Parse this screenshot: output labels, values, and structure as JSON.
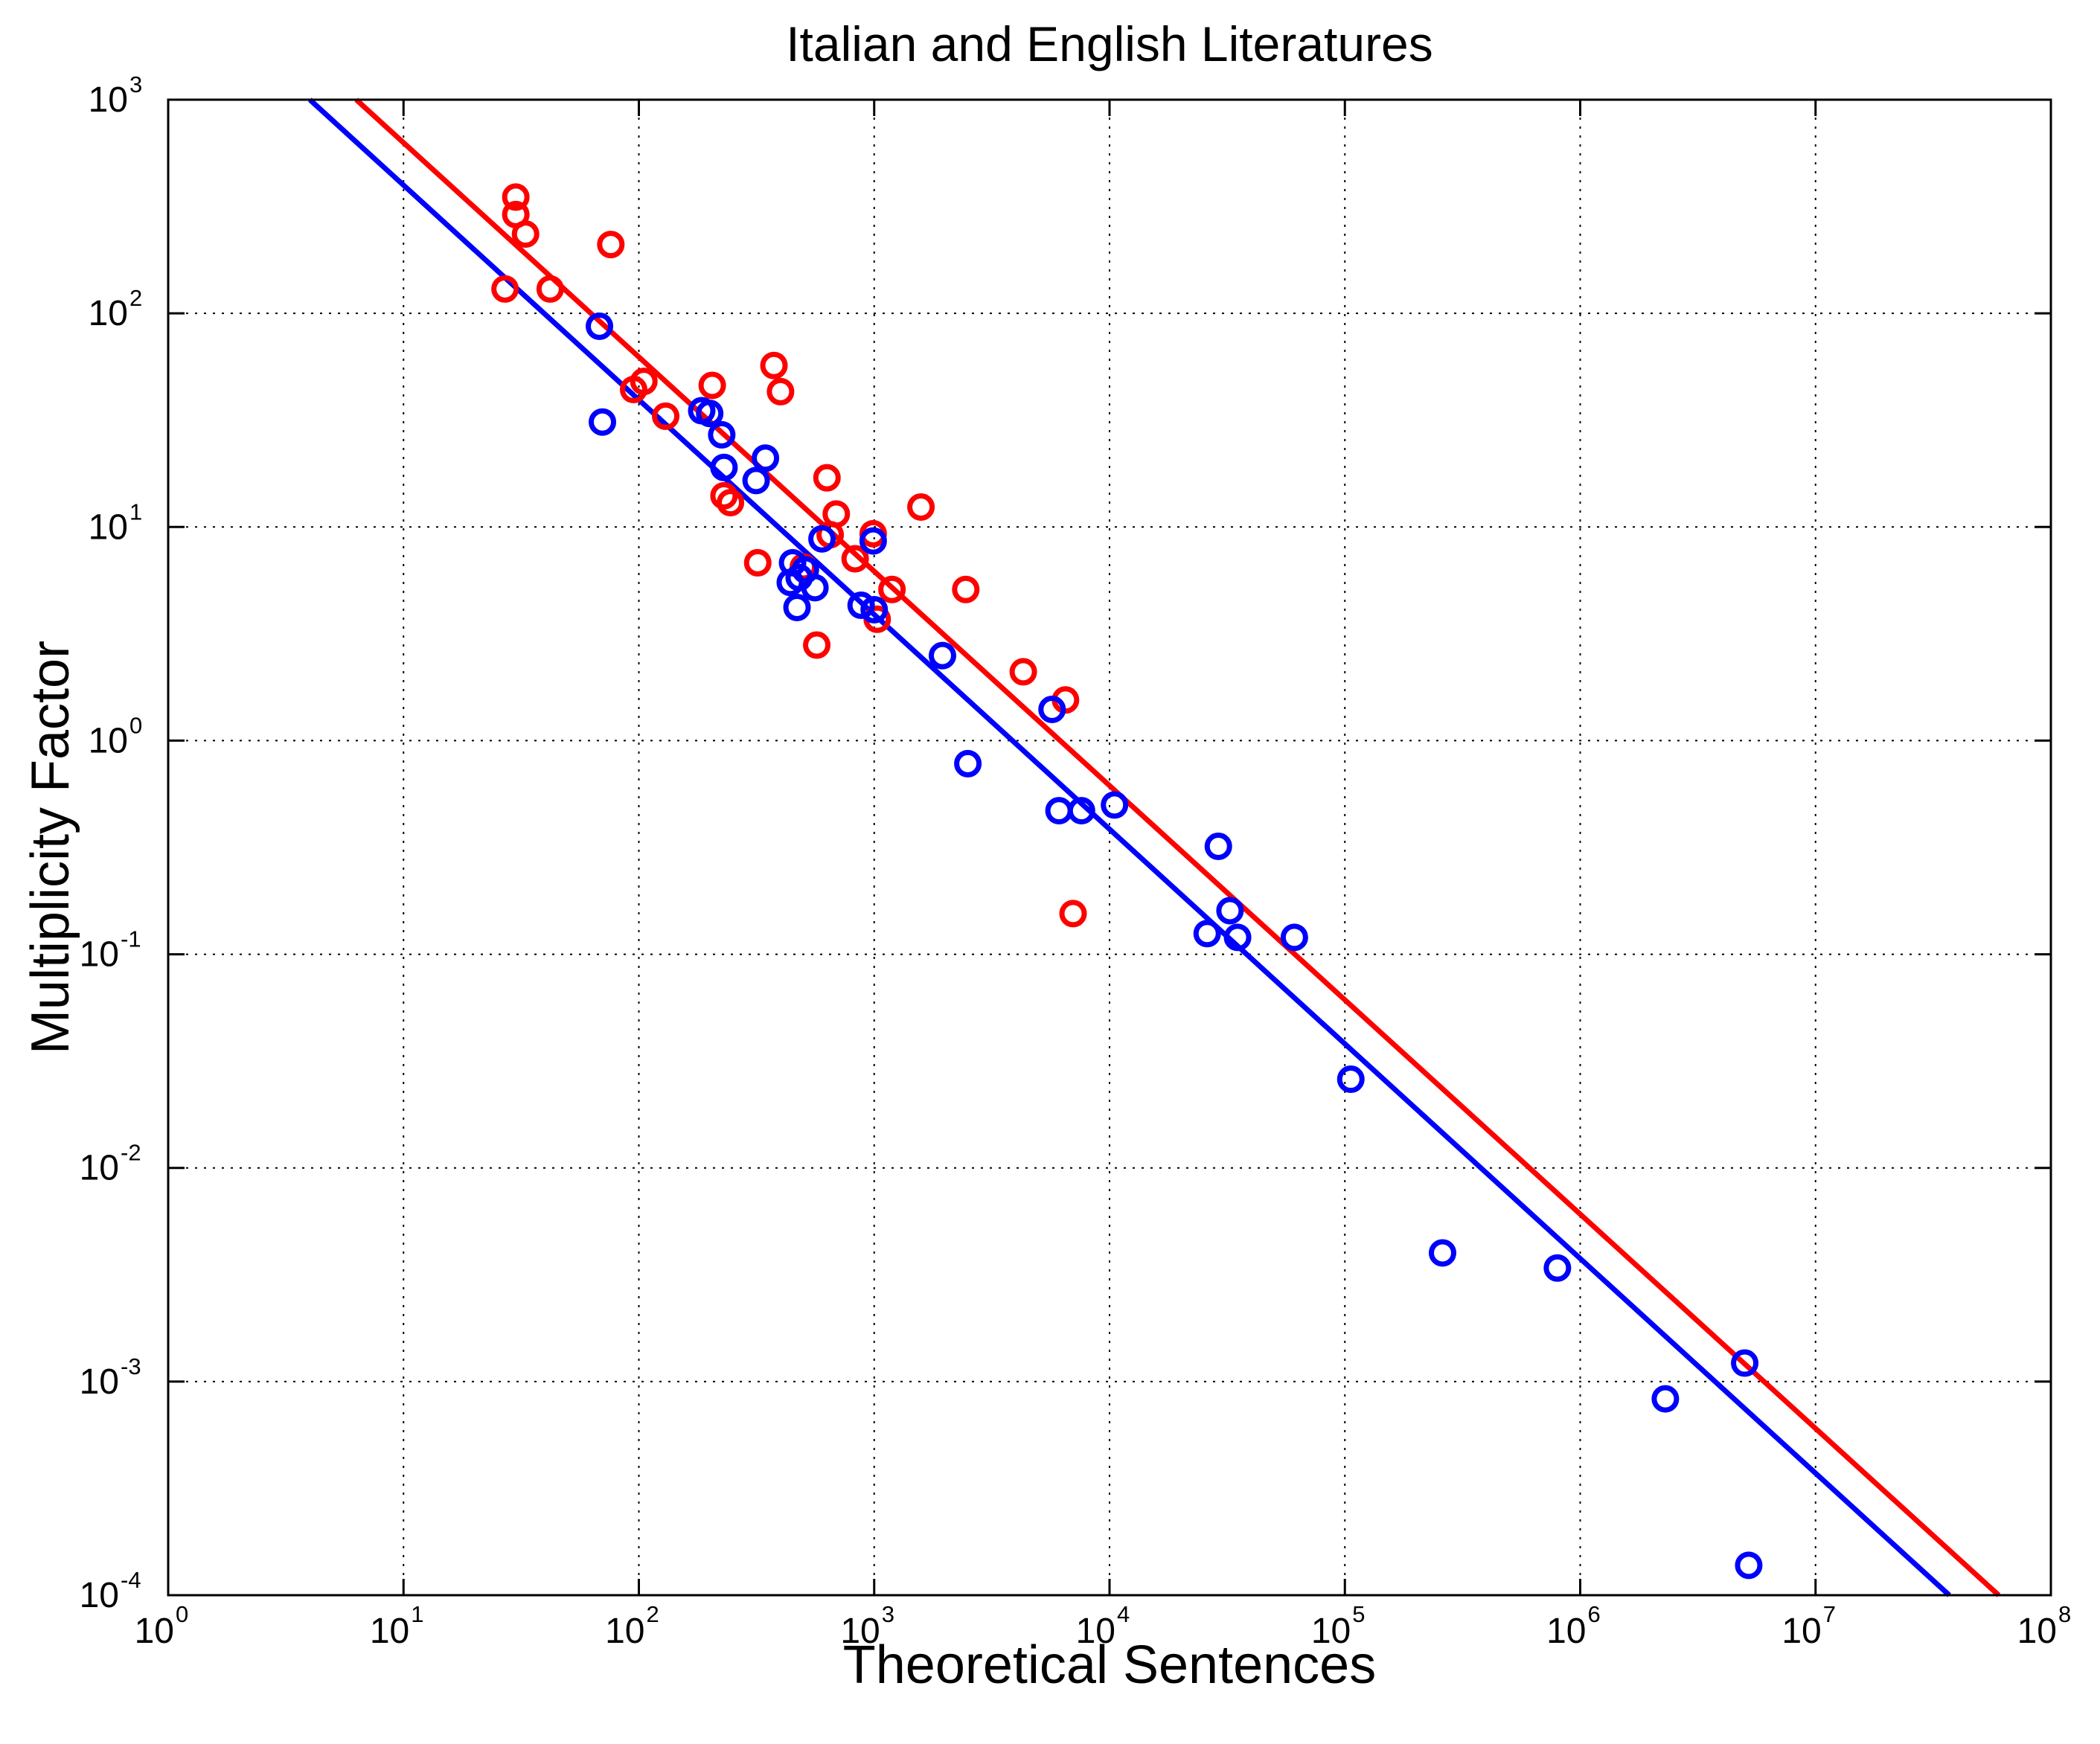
{
  "chart_data": {
    "type": "scatter",
    "title": "Italian and English Literatures",
    "xlabel": "Theoretical Sentences",
    "ylabel": "Multiplicity Factor",
    "xscale": "log",
    "yscale": "log",
    "xlim": [
      1,
      100000000
    ],
    "ylim": [
      0.0001,
      1000
    ],
    "grid": true,
    "legend": "none",
    "x_ticks": [
      {
        "base": "10",
        "exp": "0",
        "value": 1
      },
      {
        "base": "10",
        "exp": "1",
        "value": 10
      },
      {
        "base": "10",
        "exp": "2",
        "value": 100
      },
      {
        "base": "10",
        "exp": "3",
        "value": 1000
      },
      {
        "base": "10",
        "exp": "4",
        "value": 10000
      },
      {
        "base": "10",
        "exp": "5",
        "value": 100000
      },
      {
        "base": "10",
        "exp": "6",
        "value": 1000000
      },
      {
        "base": "10",
        "exp": "7",
        "value": 10000000
      },
      {
        "base": "10",
        "exp": "8",
        "value": 100000000
      }
    ],
    "y_ticks": [
      {
        "base": "10",
        "exp": "-4",
        "value": 0.0001
      },
      {
        "base": "10",
        "exp": "-3",
        "value": 0.001
      },
      {
        "base": "10",
        "exp": "-2",
        "value": 0.01
      },
      {
        "base": "10",
        "exp": "-1",
        "value": 0.1
      },
      {
        "base": "10",
        "exp": "0",
        "value": 1
      },
      {
        "base": "10",
        "exp": "1",
        "value": 10
      },
      {
        "base": "10",
        "exp": "2",
        "value": 100
      },
      {
        "base": "10",
        "exp": "3",
        "value": 1000
      }
    ],
    "series": [
      {
        "color": "#ff0000",
        "points": [
          [
            27,
            130
          ],
          [
            30,
            350
          ],
          [
            30,
            290
          ],
          [
            33,
            235
          ],
          [
            42,
            130
          ],
          [
            76,
            210
          ],
          [
            95,
            44
          ],
          [
            105,
            48
          ],
          [
            130,
            33
          ],
          [
            205,
            46
          ],
          [
            230,
            14
          ],
          [
            245,
            13
          ],
          [
            320,
            6.8
          ],
          [
            375,
            57
          ],
          [
            400,
            43
          ],
          [
            500,
            6.5
          ],
          [
            570,
            2.8
          ],
          [
            630,
            17
          ],
          [
            650,
            9.2
          ],
          [
            690,
            11.5
          ],
          [
            830,
            7.1
          ],
          [
            990,
            9.3
          ],
          [
            1030,
            3.7
          ],
          [
            1190,
            5.1
          ],
          [
            1580,
            12.4
          ],
          [
            2450,
            5.1
          ],
          [
            4300,
            2.1
          ],
          [
            6500,
            1.55
          ],
          [
            7000,
            0.155
          ]
        ],
        "fit": [
          [
            6.3,
            1000
          ],
          [
            60000000,
            0.0001
          ]
        ]
      },
      {
        "color": "#0000ff",
        "points": [
          [
            68,
            87
          ],
          [
            70,
            31
          ],
          [
            185,
            35
          ],
          [
            200,
            34
          ],
          [
            225,
            27
          ],
          [
            230,
            19
          ],
          [
            315,
            16.5
          ],
          [
            345,
            21
          ],
          [
            440,
            5.5
          ],
          [
            450,
            6.8
          ],
          [
            470,
            4.2
          ],
          [
            480,
            5.8
          ],
          [
            510,
            6.3
          ],
          [
            560,
            5.2
          ],
          [
            600,
            8.8
          ],
          [
            880,
            4.3
          ],
          [
            990,
            8.6
          ],
          [
            1000,
            4.1
          ],
          [
            1950,
            2.5
          ],
          [
            2500,
            0.78
          ],
          [
            5700,
            1.4
          ],
          [
            6100,
            0.47
          ],
          [
            7600,
            0.47
          ],
          [
            10500,
            0.5
          ],
          [
            26000,
            0.125
          ],
          [
            29000,
            0.32
          ],
          [
            32500,
            0.16
          ],
          [
            35000,
            0.12
          ],
          [
            61000,
            0.12
          ],
          [
            106000,
            0.026
          ],
          [
            260000,
            0.004
          ],
          [
            800000,
            0.0034
          ],
          [
            2300000,
            0.00083
          ],
          [
            5000000,
            0.00122
          ],
          [
            5200000,
            0.000138
          ]
        ],
        "fit": [
          [
            4,
            1000
          ],
          [
            37000000,
            0.0001
          ]
        ]
      }
    ]
  }
}
